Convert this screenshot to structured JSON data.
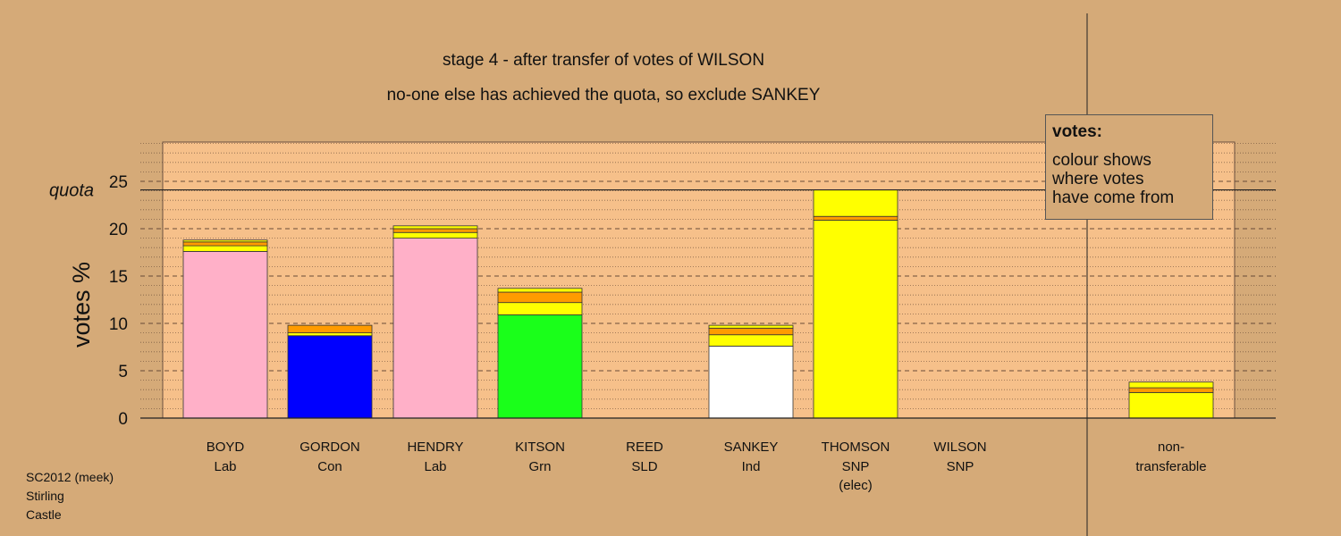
{
  "chart_data": {
    "type": "bar",
    "title": "stage 4 - after transfer of votes of WILSON",
    "subtitle": "no-one else has achieved the quota, so exclude SANKEY",
    "ylabel": "votes %",
    "quota_label": "quota",
    "quota": 24.1,
    "ylim": [
      0,
      29
    ],
    "yticks": [
      0,
      5,
      10,
      15,
      20,
      25
    ],
    "grid": "dashed every 5, dotted every 1",
    "categories": [
      {
        "name": "BOYD",
        "party": "Lab"
      },
      {
        "name": "GORDON",
        "party": "Con"
      },
      {
        "name": "HENDRY",
        "party": "Lab"
      },
      {
        "name": "KITSON",
        "party": "Grn"
      },
      {
        "name": "REED",
        "party": "SLD"
      },
      {
        "name": "SANKEY",
        "party": "Ind"
      },
      {
        "name": "THOMSON",
        "party": "SNP",
        "note": "(elec)"
      },
      {
        "name": "WILSON",
        "party": "SNP"
      },
      {
        "name": "non-",
        "party": "transferable"
      }
    ],
    "bars": [
      {
        "segments": [
          {
            "value": 17.6,
            "color": "#ffb0c8"
          },
          {
            "value": 0.6,
            "color": "#ffff00"
          },
          {
            "value": 0.4,
            "color": "#ff9b00"
          },
          {
            "value": 0.2,
            "color": "#ffff00"
          }
        ]
      },
      {
        "segments": [
          {
            "value": 8.7,
            "color": "#0000ff"
          },
          {
            "value": 0.3,
            "color": "#ffff00"
          },
          {
            "value": 0.8,
            "color": "#ff9b00"
          }
        ]
      },
      {
        "segments": [
          {
            "value": 19.0,
            "color": "#ffb0c8"
          },
          {
            "value": 0.6,
            "color": "#ffff00"
          },
          {
            "value": 0.4,
            "color": "#ff9b00"
          },
          {
            "value": 0.3,
            "color": "#ffff00"
          }
        ]
      },
      {
        "segments": [
          {
            "value": 10.9,
            "color": "#1aff1a"
          },
          {
            "value": 1.3,
            "color": "#ffff00"
          },
          {
            "value": 1.1,
            "color": "#ff9b00"
          },
          {
            "value": 0.4,
            "color": "#ffff00"
          }
        ]
      },
      {
        "segments": []
      },
      {
        "segments": [
          {
            "value": 7.6,
            "color": "#ffffff"
          },
          {
            "value": 1.2,
            "color": "#ffff00"
          },
          {
            "value": 0.7,
            "color": "#ff9b00"
          },
          {
            "value": 0.3,
            "color": "#ffff00"
          }
        ]
      },
      {
        "segments": [
          {
            "value": 20.9,
            "color": "#ffff00"
          },
          {
            "value": 0.4,
            "color": "#ff9b00"
          },
          {
            "value": 2.8,
            "color": "#ffff00"
          }
        ]
      },
      {
        "segments": []
      },
      {
        "segments": [
          {
            "value": 2.7,
            "color": "#ffff00"
          },
          {
            "value": 0.5,
            "color": "#ff9b00"
          },
          {
            "value": 0.6,
            "color": "#ffff00"
          }
        ]
      }
    ]
  },
  "legend": {
    "title": "votes:",
    "lines": [
      "colour shows",
      "where votes",
      "have come from"
    ]
  },
  "footer": [
    "SC2012 (meek)",
    "Stirling",
    "Castle"
  ],
  "colors": {
    "background": "#d5aa78",
    "plot_area": "#f6c08a",
    "grid": "#5a4030"
  }
}
